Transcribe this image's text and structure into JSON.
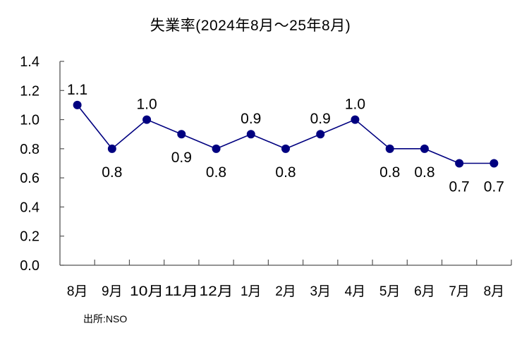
{
  "title": "失業率(2024年8月～25年8月)",
  "source": "出所:NSO",
  "colors": {
    "line": "#000080",
    "marker": "#000080",
    "axis": "#555555",
    "text": "#000000"
  },
  "chart_data": {
    "type": "line",
    "title": "失業率(2024年8月～25年8月)",
    "xlabel": "",
    "ylabel": "",
    "categories": [
      "8月",
      "9月",
      "10月",
      "11月",
      "12月",
      "1月",
      "2月",
      "3月",
      "4月",
      "5月",
      "6月",
      "7月",
      "8月"
    ],
    "series": [
      {
        "name": "失業率",
        "values": [
          1.1,
          0.8,
          1.0,
          0.9,
          0.8,
          0.9,
          0.8,
          0.9,
          1.0,
          0.8,
          0.8,
          0.7,
          0.7
        ],
        "labels": [
          "1.1",
          "0.8",
          "1.0",
          "0.9",
          "0.8",
          "0.9",
          "0.8",
          "0.9",
          "1.0",
          "0.8",
          "0.8",
          "0.7",
          "0.7"
        ],
        "label_positions": [
          "above",
          "below",
          "above",
          "below",
          "below",
          "above",
          "below",
          "above",
          "above",
          "below",
          "below",
          "below",
          "below"
        ]
      }
    ],
    "ylim": [
      0.0,
      1.4
    ],
    "yticks": [
      "0.0",
      "0.2",
      "0.4",
      "0.6",
      "0.8",
      "1.0",
      "1.2",
      "1.4"
    ],
    "grid": false,
    "legend": "none",
    "annotations": [
      "出所:NSO"
    ]
  }
}
